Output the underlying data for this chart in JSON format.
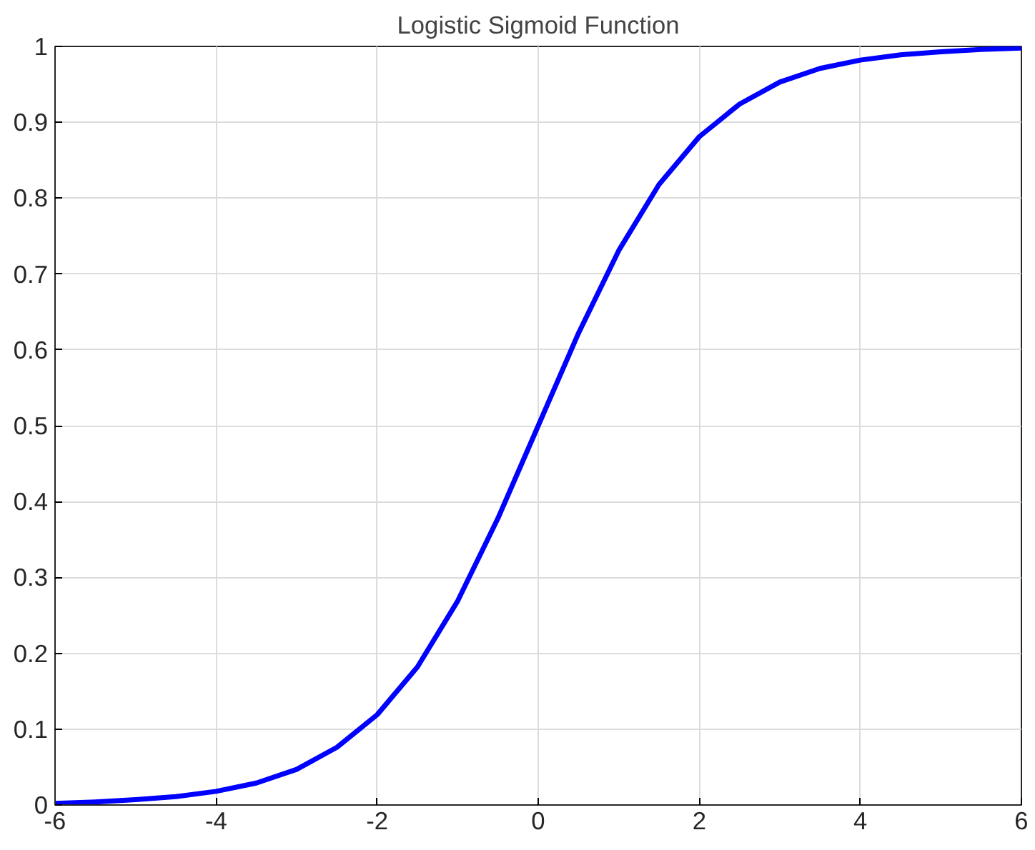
{
  "chart_data": {
    "type": "line",
    "title": "Logistic Sigmoid Function",
    "x": [
      -6,
      -5.5,
      -5,
      -4.5,
      -4,
      -3.5,
      -3,
      -2.5,
      -2,
      -1.5,
      -1,
      -0.5,
      0,
      0.5,
      1,
      1.5,
      2,
      2.5,
      3,
      3.5,
      4,
      4.5,
      5,
      5.5,
      6
    ],
    "series": [
      {
        "color": "#0000ff",
        "values": [
          0.002,
          0.004,
          0.007,
          0.011,
          0.018,
          0.029,
          0.047,
          0.076,
          0.119,
          0.182,
          0.269,
          0.378,
          0.5,
          0.622,
          0.731,
          0.818,
          0.881,
          0.924,
          0.953,
          0.971,
          0.982,
          0.989,
          0.993,
          0.996,
          0.998
        ]
      }
    ],
    "xlim": [
      -6,
      6
    ],
    "ylim": [
      0,
      1
    ],
    "xticks": [
      -6,
      -4,
      -2,
      0,
      2,
      4,
      6
    ],
    "yticks": [
      0,
      0.1,
      0.2,
      0.3,
      0.4,
      0.5,
      0.6,
      0.7,
      0.8,
      0.9,
      1
    ],
    "grid": true,
    "line_style": "solid"
  }
}
